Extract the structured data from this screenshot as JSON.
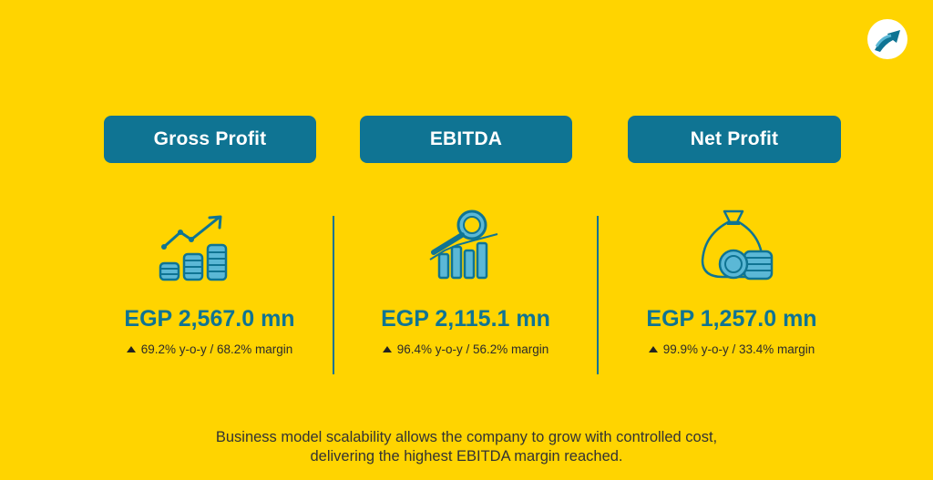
{
  "colors": {
    "background": "#FFD400",
    "accent": "#0F7493",
    "text": "#2b2b2b"
  },
  "logo": {
    "icon": "arrow-up-right-logo-icon"
  },
  "metrics": [
    {
      "title": "Gross Profit",
      "icon": "growth-chart-coins-icon",
      "value": "EGP 2,567.0 mn",
      "note": "69.2% y-o-y / 68.2% margin"
    },
    {
      "title": "EBITDA",
      "icon": "magnifier-bar-chart-icon",
      "value": "EGP 2,115.1 mn",
      "note": "96.4% y-o-y / 56.2% margin"
    },
    {
      "title": "Net Profit",
      "icon": "money-bag-coins-icon",
      "value": "EGP 1,257.0 mn",
      "note": "99.9% y-o-y / 33.4% margin"
    }
  ],
  "footer": {
    "line1": "Business model scalability allows the company to grow with controlled cost,",
    "line2": "delivering the highest EBITDA margin reached."
  }
}
